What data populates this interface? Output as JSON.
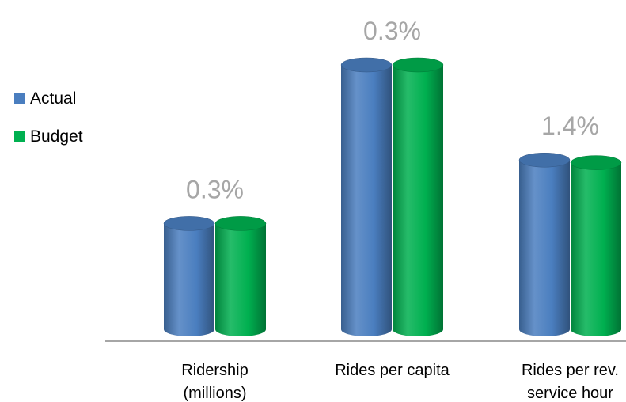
{
  "chart_data": {
    "type": "bar",
    "style": "3d-cylinder",
    "categories": [
      [
        "Ridership",
        "(millions)"
      ],
      [
        "Rides per capita"
      ],
      [
        "Rides per rev.",
        "service hour"
      ]
    ],
    "series": [
      {
        "name": "Actual",
        "color": "#4a7ebf",
        "values": [
          0.4,
          1.0,
          0.64
        ]
      },
      {
        "name": "Budget",
        "color": "#00b050",
        "values": [
          0.4,
          1.0,
          0.63
        ]
      }
    ],
    "annotations": [
      "0.3%",
      "0.3%",
      "1.4%"
    ],
    "legend_position": "left",
    "gridlines": false
  }
}
